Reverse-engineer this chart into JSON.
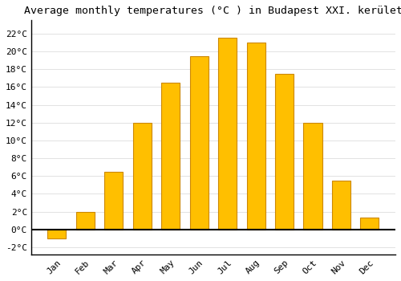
{
  "title": "Average monthly temperatures (°C ) in Budapest XXI. kerület",
  "months": [
    "Jan",
    "Feb",
    "Mar",
    "Apr",
    "May",
    "Jun",
    "Jul",
    "Aug",
    "Sep",
    "Oct",
    "Nov",
    "Dec"
  ],
  "values": [
    -1.0,
    2.0,
    6.5,
    12.0,
    16.5,
    19.5,
    21.5,
    21.0,
    17.5,
    12.0,
    5.5,
    1.3
  ],
  "bar_color": "#FFBF00",
  "bar_edge_color": "#CC8800",
  "background_color": "#FFFFFF",
  "grid_color": "#DDDDDD",
  "ylim": [
    -2.8,
    23.5
  ],
  "yticks": [
    -2,
    0,
    2,
    4,
    6,
    8,
    10,
    12,
    14,
    16,
    18,
    20,
    22
  ],
  "title_fontsize": 9.5,
  "tick_fontsize": 8,
  "zero_line_color": "#000000",
  "axis_line_color": "#000000"
}
